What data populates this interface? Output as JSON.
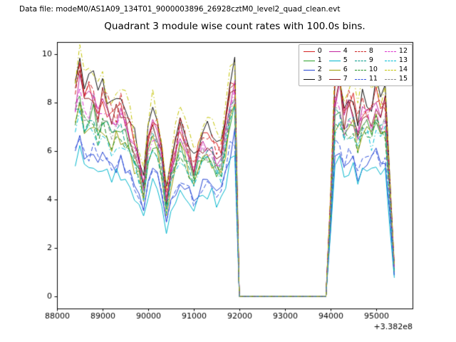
{
  "header": {
    "datafile_label": "Data file: modeM0/AS1A09_134T01_9000003896_26928cztM0_level2_quad_clean.evt"
  },
  "legend": {
    "position": "upper right",
    "columns": 4
  },
  "chart_data": {
    "type": "line",
    "title": "Quadrant 3 module wise count rates with 100.0s bins.",
    "xlabel": "",
    "ylabel": "",
    "x_offset_text": "+3.382e8",
    "bin_seconds": 100.0,
    "xlim": [
      88000,
      95800
    ],
    "ylim": [
      -0.5,
      10.5
    ],
    "xticks": [
      88000,
      89000,
      90000,
      91000,
      92000,
      93000,
      94000,
      95000
    ],
    "xticklabels": [
      "88000",
      "89000",
      "90000",
      "91000",
      "92000",
      "93000",
      "94000",
      "95000"
    ],
    "yticks": [
      0,
      2,
      4,
      6,
      8,
      10
    ],
    "yticklabels": [
      "0",
      "2",
      "4",
      "6",
      "8",
      "10"
    ],
    "x_start": 88400,
    "x_step": 100,
    "n_points": 71,
    "gap_zero_region": [
      92000,
      93950
    ],
    "noise_amplitude": 0.07,
    "base_shape": [
      [
        88400,
        0.93
      ],
      [
        88500,
        1.0
      ],
      [
        88600,
        0.88
      ],
      [
        88800,
        0.93
      ],
      [
        88900,
        0.83
      ],
      [
        89000,
        0.9
      ],
      [
        89200,
        0.8
      ],
      [
        89400,
        0.85
      ],
      [
        89600,
        0.75
      ],
      [
        89800,
        0.62
      ],
      [
        89900,
        0.52
      ],
      [
        90000,
        0.72
      ],
      [
        90100,
        0.8
      ],
      [
        90250,
        0.74
      ],
      [
        90400,
        0.45
      ],
      [
        90550,
        0.65
      ],
      [
        90700,
        0.76
      ],
      [
        90850,
        0.7
      ],
      [
        91000,
        0.58
      ],
      [
        91100,
        0.66
      ],
      [
        91250,
        0.72
      ],
      [
        91400,
        0.7
      ],
      [
        91550,
        0.62
      ],
      [
        91650,
        0.68
      ],
      [
        91800,
        0.93
      ],
      [
        91900,
        1.0
      ],
      [
        92000,
        0.0
      ],
      [
        93950,
        0.0
      ],
      [
        94050,
        0.85
      ],
      [
        94150,
        1.0
      ],
      [
        94300,
        0.82
      ],
      [
        94450,
        0.92
      ],
      [
        94600,
        0.78
      ],
      [
        94750,
        0.9
      ],
      [
        94850,
        0.8
      ],
      [
        95000,
        0.9
      ],
      [
        95100,
        0.82
      ],
      [
        95200,
        0.88
      ],
      [
        95300,
        0.5
      ],
      [
        95400,
        0.13
      ]
    ],
    "series": [
      {
        "name": "0",
        "color": "#d62222",
        "dash": "solid",
        "scale": 9.2
      },
      {
        "name": "1",
        "color": "#2ca02c",
        "dash": "solid",
        "scale": 8.1
      },
      {
        "name": "2",
        "color": "#2343d2",
        "dash": "solid",
        "scale": 6.5
      },
      {
        "name": "3",
        "color": "#101010",
        "dash": "solid",
        "scale": 9.6
      },
      {
        "name": "4",
        "color": "#c2259e",
        "dash": "solid",
        "scale": 8.8
      },
      {
        "name": "5",
        "color": "#00b5cc",
        "dash": "solid",
        "scale": 6.0
      },
      {
        "name": "6",
        "color": "#9a9a00",
        "dash": "solid",
        "scale": 7.9
      },
      {
        "name": "7",
        "color": "#8b1a1a",
        "dash": "solid",
        "scale": 9.0
      },
      {
        "name": "8",
        "color": "#cc2222",
        "dash": "dashed",
        "scale": 9.3
      },
      {
        "name": "9",
        "color": "#009988",
        "dash": "dashed",
        "scale": 8.3
      },
      {
        "name": "10",
        "color": "#1e8c1e",
        "dash": "dashed",
        "scale": 7.9
      },
      {
        "name": "11",
        "color": "#3355dd",
        "dash": "dashed",
        "scale": 6.6
      },
      {
        "name": "12",
        "color": "#dd33cc",
        "dash": "dashdot",
        "scale": 8.6
      },
      {
        "name": "13",
        "color": "#00bcd4",
        "dash": "dashdot",
        "scale": 7.7
      },
      {
        "name": "14",
        "color": "#c3c300",
        "dash": "dashdot",
        "scale": 10.0
      },
      {
        "name": "15",
        "color": "#8a8a8a",
        "dash": "dashdot",
        "scale": 8.4
      }
    ]
  }
}
